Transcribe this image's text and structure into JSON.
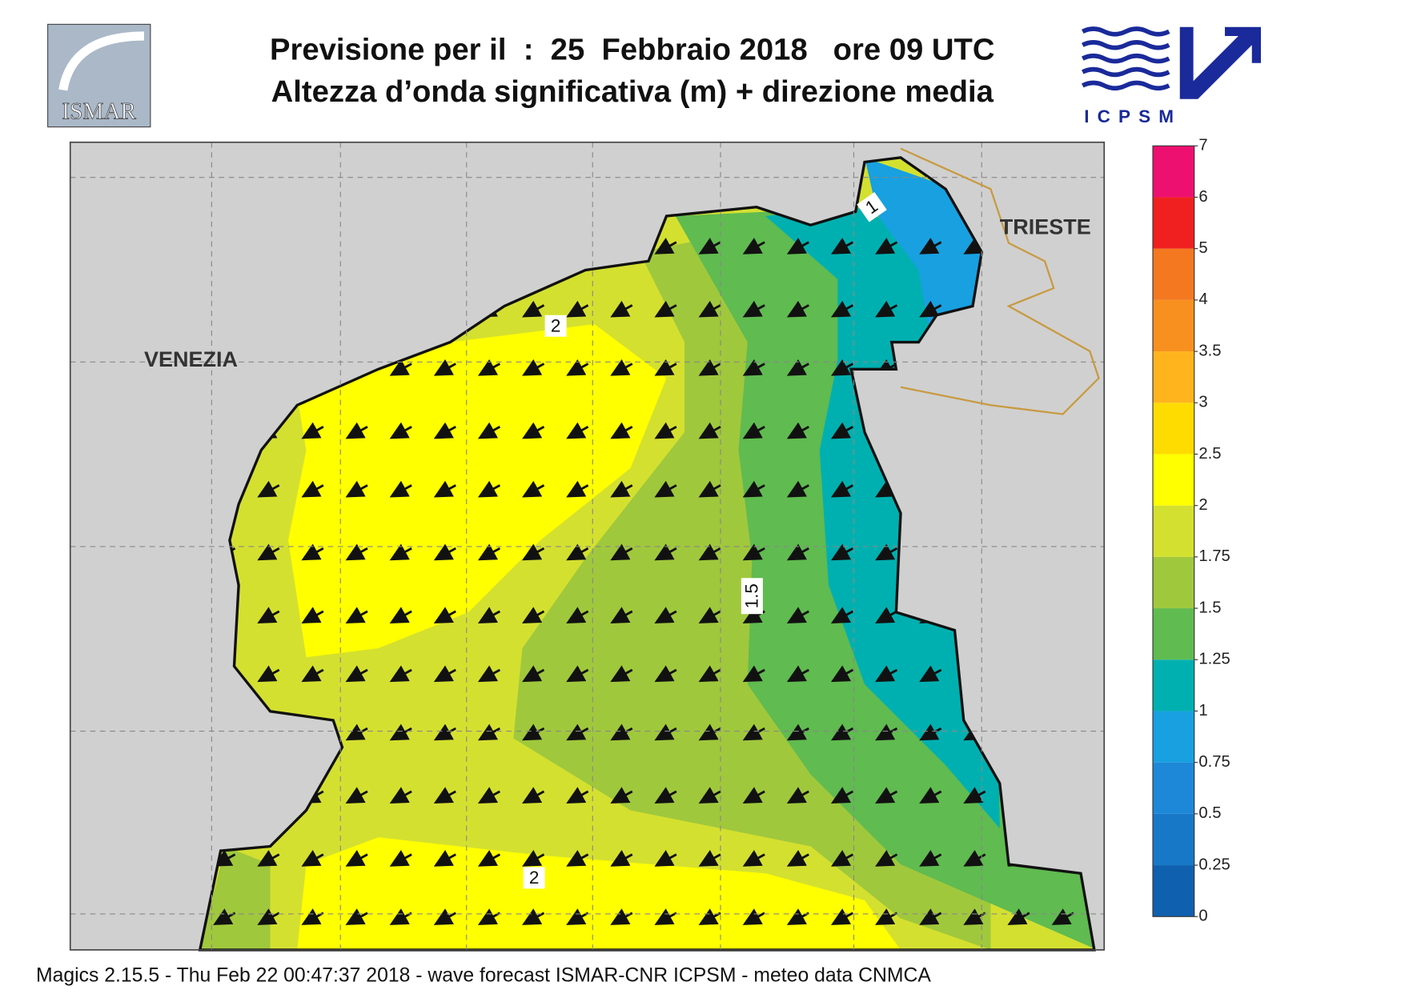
{
  "header": {
    "title_line1": "Previsione per il  :  25  Febbraio 2018   ore 09 UTC",
    "title_line2": "Altezza d’onda significativa (m) + direzione media"
  },
  "logos": {
    "left": "ISMAR",
    "right": "ICPSM"
  },
  "map": {
    "places": [
      "VENEZIA",
      "TRIESTE"
    ],
    "contour_labels": [
      "2",
      "1",
      "1.5",
      "2"
    ]
  },
  "colorbar": {
    "ticks": [
      0,
      0.25,
      0.5,
      0.75,
      1,
      1.25,
      1.5,
      1.75,
      2,
      2.5,
      3,
      3.5,
      4,
      5,
      6,
      7
    ],
    "colors": [
      "#1060b0",
      "#1878c8",
      "#1e88d8",
      "#18a0e0",
      "#00b0b0",
      "#60bb50",
      "#a0c83c",
      "#d4e030",
      "#ffff00",
      "#ffdc00",
      "#ffb41e",
      "#f89020",
      "#f47820",
      "#f02020",
      "#ee1070"
    ]
  },
  "footer": "Magics 2.15.5 - Thu Feb 22 00:47:37 2018 - wave forecast  ISMAR-CNR  ICPSM - meteo data   CNMCA"
}
